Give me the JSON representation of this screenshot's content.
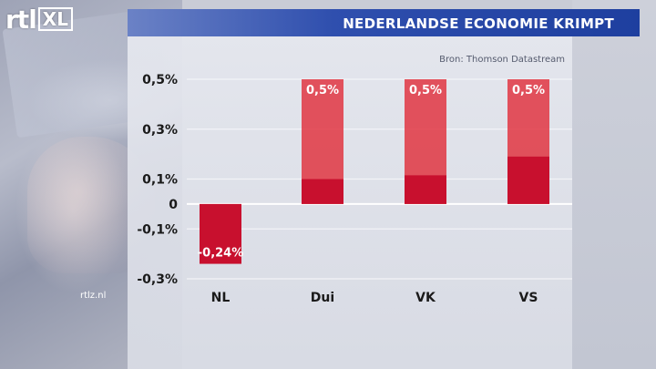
{
  "header": {
    "channel_logo_text": "rtl",
    "channel_logo_box": "XL",
    "title": "NEDERLANDSE ECONOMIE KRIMPT"
  },
  "source": "Bron: Thomson Datastream",
  "watermark": "rtlz.nl",
  "colors": {
    "title_bar": "#1e3f9f",
    "bar_fill": "#e0303c",
    "bar_base": "#c8102e"
  },
  "chart_data": {
    "type": "bar",
    "categories": [
      "NL",
      "Dui",
      "VK",
      "VS"
    ],
    "values": [
      -0.24,
      0.5,
      0.5,
      0.5
    ],
    "data_labels": [
      "-0,24%",
      "0,5%",
      "0,5%",
      "0,5%"
    ],
    "inner_values": [
      -0.24,
      0.1,
      0.115,
      0.19
    ],
    "y_ticks": [
      0.5,
      0.3,
      0.1,
      0,
      -0.1,
      -0.3
    ],
    "y_tick_labels": [
      "0,5%",
      "0,3%",
      "0,1%",
      "0",
      "-0,1%",
      "-0,3%"
    ],
    "ylim": [
      -0.3,
      0.5
    ],
    "grid": true,
    "legend": "none"
  }
}
